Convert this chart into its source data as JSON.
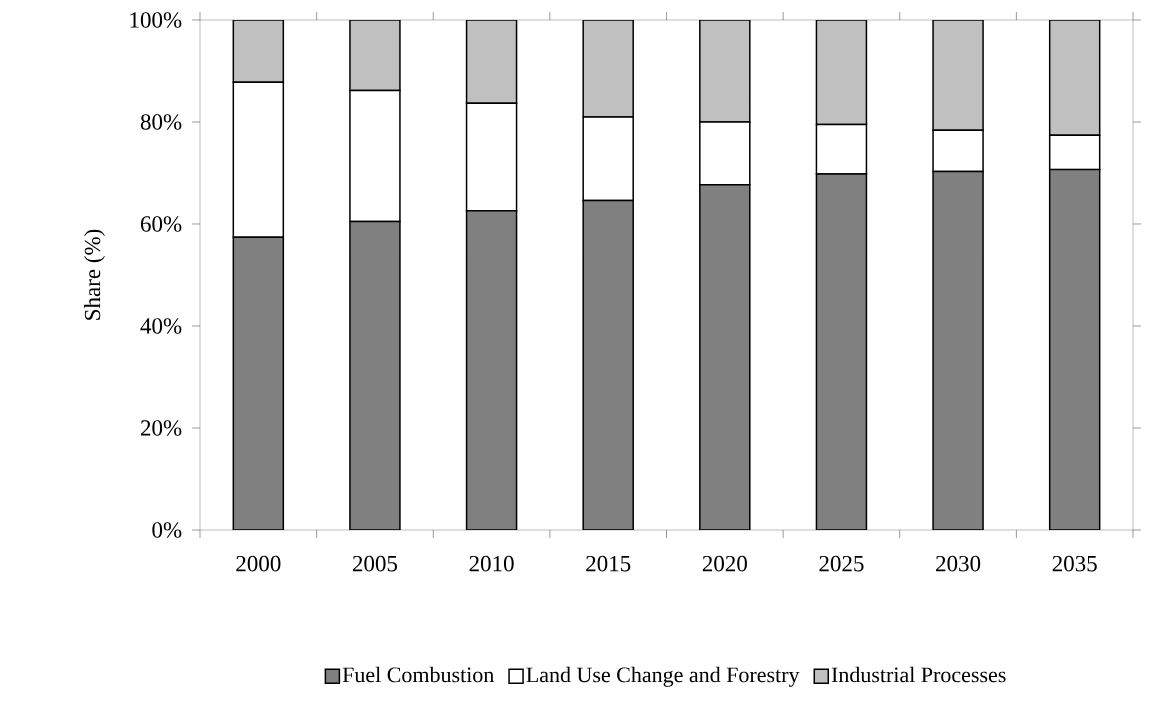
{
  "chart_data": {
    "type": "bar",
    "stacked": true,
    "ylabel": "Share (%)",
    "categories": [
      "2000",
      "2005",
      "2010",
      "2015",
      "2020",
      "2025",
      "2030",
      "2035"
    ],
    "series": [
      {
        "name": "Fuel Combustion",
        "color": "#808080",
        "values": [
          57.4,
          60.5,
          62.6,
          64.6,
          67.7,
          69.8,
          70.3,
          70.7
        ]
      },
      {
        "name": "Land Use Change and Forestry",
        "color": "#ffffff",
        "values": [
          30.4,
          25.7,
          21.1,
          16.4,
          12.3,
          9.7,
          8.1,
          6.7
        ]
      },
      {
        "name": "Industrial Processes",
        "color": "#c0c0c0",
        "values": [
          12.2,
          13.8,
          16.3,
          19.0,
          20.0,
          20.5,
          21.6,
          22.6
        ]
      }
    ],
    "ylim": [
      0,
      100
    ],
    "yticks": [
      {
        "value": 0,
        "label": "0%"
      },
      {
        "value": 20,
        "label": "20%"
      },
      {
        "value": 40,
        "label": "40%"
      },
      {
        "value": 60,
        "label": "60%"
      },
      {
        "value": 80,
        "label": "80%"
      },
      {
        "value": 100,
        "label": "100%"
      }
    ],
    "grid": false,
    "legend": "bottom"
  }
}
